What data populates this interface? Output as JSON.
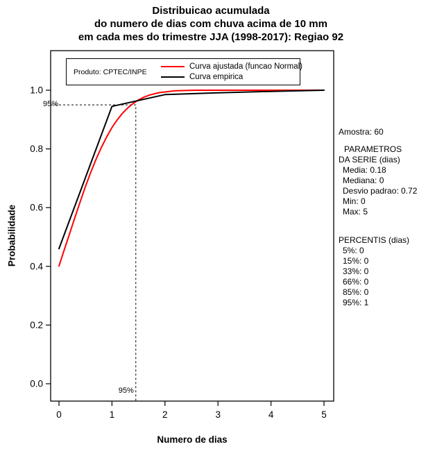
{
  "title": {
    "line1": "Distribuicao acumulada",
    "line2": "do numero de dias com chuva acima de 10 mm",
    "line3": "em cada mes do trimestre JJA (1998-2017): Regiao 92"
  },
  "legend": {
    "product": "Produto: CPTEC/INPE",
    "items": [
      {
        "label": "Curva ajustada (funcao Normal)",
        "color": "#ff0000"
      },
      {
        "label": "Curva empirica",
        "color": "#000000"
      }
    ]
  },
  "chart_data": {
    "type": "line",
    "title": "Distribuicao acumulada do numero de dias com chuva acima de 10 mm em cada mes do trimestre JJA (1998-2017): Regiao 92",
    "xlabel": "Numero de dias",
    "ylabel": "Probabilidade",
    "xlim": [
      0,
      5
    ],
    "ylim": [
      0,
      1
    ],
    "xticks": [
      "0",
      "1",
      "2",
      "3",
      "4",
      "5"
    ],
    "yticks": [
      "0.0",
      "0.2",
      "0.4",
      "0.6",
      "0.8",
      "1.0"
    ],
    "grid": false,
    "legend_position": "top-left",
    "series": [
      {
        "name": "Curva ajustada (funcao Normal)",
        "color": "#ff0000",
        "x": [
          0,
          0.1,
          0.2,
          0.3,
          0.4,
          0.5,
          0.6,
          0.7,
          0.8,
          0.9,
          1.0,
          1.1,
          1.2,
          1.3,
          1.4,
          1.5,
          1.6,
          1.7,
          1.8,
          1.9,
          2.0,
          2.2,
          2.4,
          2.6,
          2.8,
          3.0,
          3.5,
          4.0,
          4.5,
          5.0
        ],
        "y": [
          0.401,
          0.456,
          0.511,
          0.566,
          0.62,
          0.672,
          0.72,
          0.765,
          0.805,
          0.841,
          0.873,
          0.899,
          0.922,
          0.94,
          0.955,
          0.967,
          0.976,
          0.983,
          0.988,
          0.992,
          0.994,
          0.998,
          0.999,
          1.0,
          1.0,
          1.0,
          1.0,
          1.0,
          1.0,
          1.0
        ]
      },
      {
        "name": "Curva empirica",
        "color": "#000000",
        "x": [
          0,
          1,
          2,
          3,
          4,
          5
        ],
        "y": [
          0.46,
          0.945,
          0.985,
          0.991,
          0.996,
          1.0
        ]
      }
    ],
    "annotations": {
      "h_line": {
        "y": 0.95,
        "label": "95%"
      },
      "v_line": {
        "x": 1.45,
        "label": "95%"
      }
    }
  },
  "stats": {
    "amostra": "Amostra: 60",
    "parametros_title": [
      "PARAMETROS",
      "DA SERIE (dias)"
    ],
    "parametros": [
      "Media: 0.18",
      "Mediana: 0",
      "Desvio padrao: 0.72",
      "Min: 0",
      "Max: 5"
    ],
    "percentis_title": "PERCENTIS (dias)",
    "percentis": [
      "5%: 0",
      "15%: 0",
      "33%: 0",
      "66%: 0",
      "85%: 0",
      "95%: 1"
    ]
  }
}
